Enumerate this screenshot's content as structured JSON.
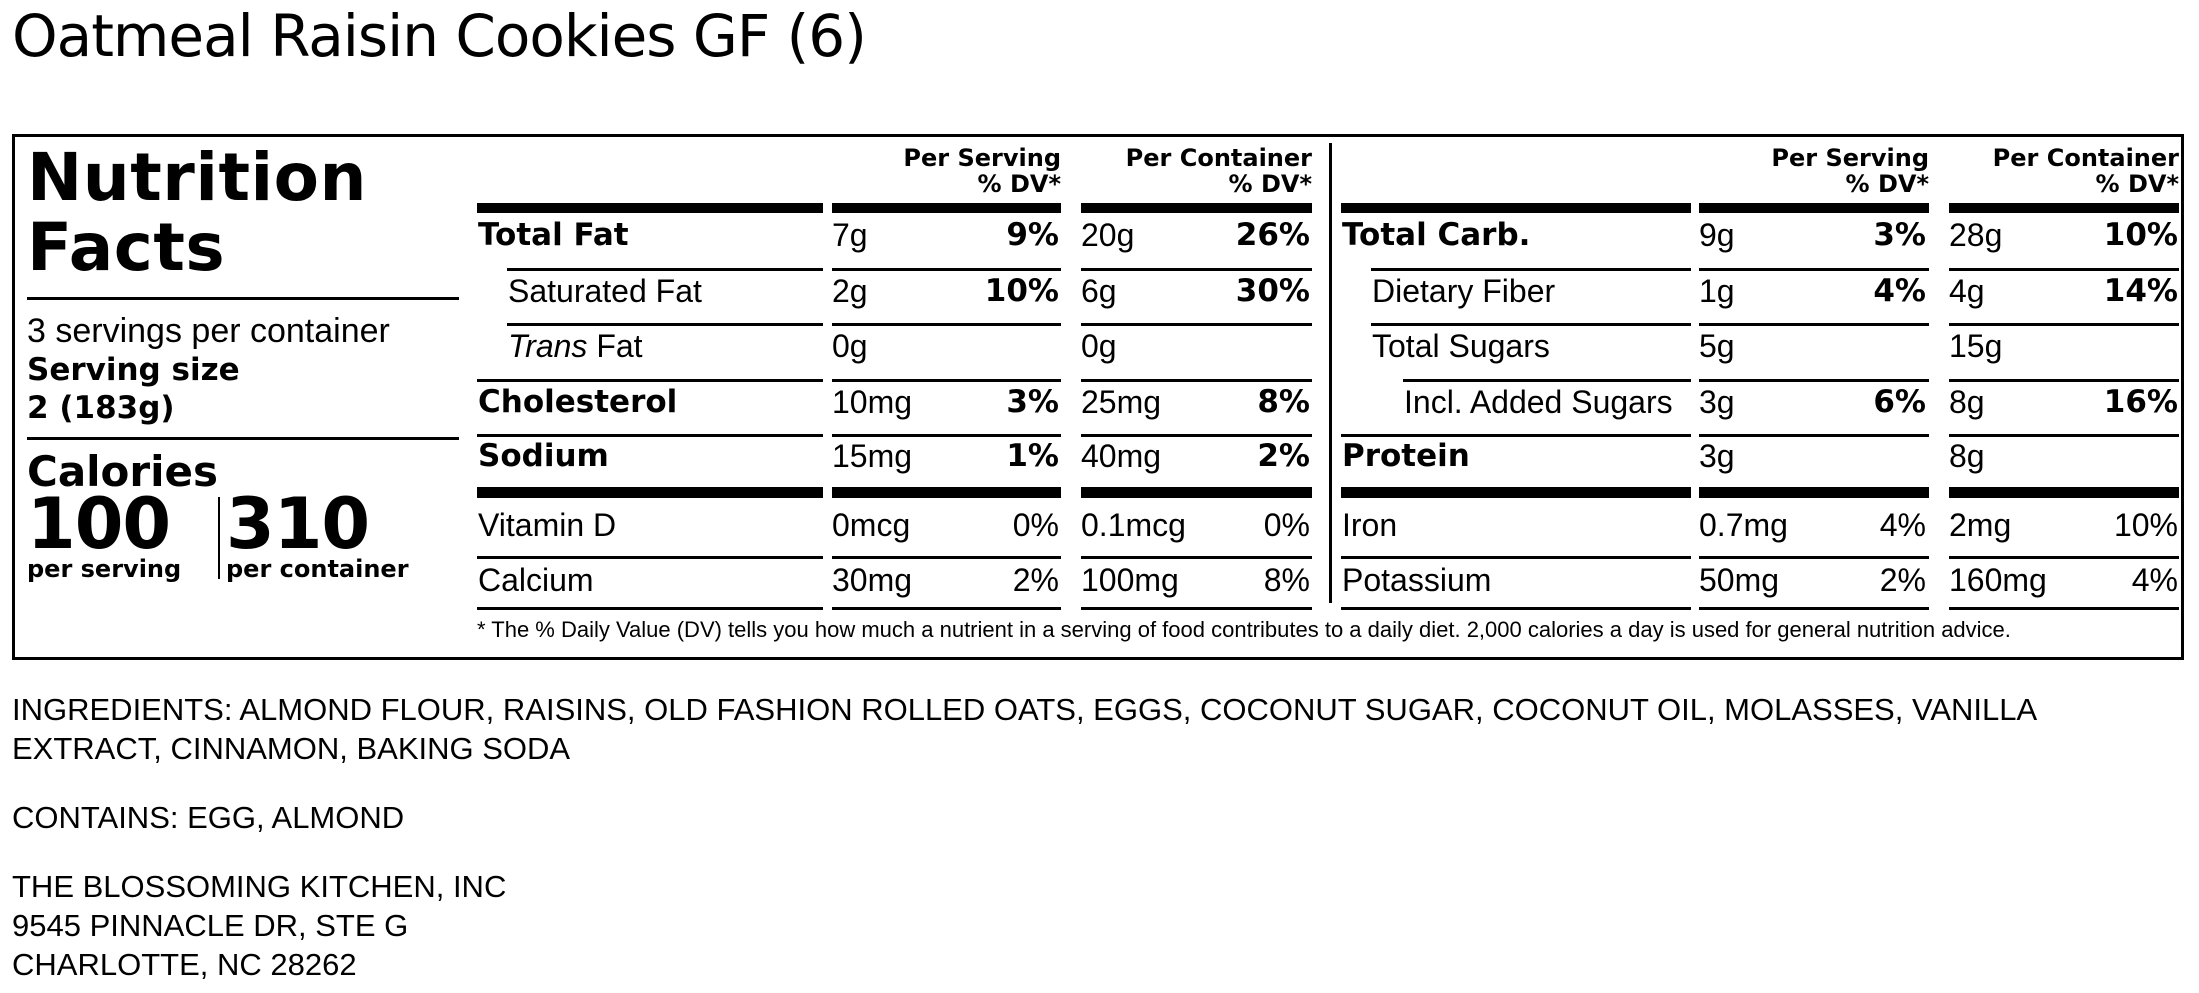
{
  "product_title": "Oatmeal Raisin Cookies GF (6)",
  "panel": {
    "heading_line1": "Nutrition",
    "heading_line2": "Facts",
    "servings_per_container": "3 servings per container",
    "serving_size_label": "Serving size",
    "serving_size_value": "2 (183g)",
    "calories_label": "Calories",
    "calories_per_serving": "100",
    "calories_per_container": "310",
    "per_serving_label": "per serving",
    "per_container_label": "per container"
  },
  "column_headers": {
    "per_serving_line1": "Per Serving",
    "per_serving_line2": "% DV*",
    "per_container_line1": "Per Container",
    "per_container_line2": "% DV*"
  },
  "left_rows": [
    {
      "name": "Total Fat",
      "bold": true,
      "indent": 0,
      "italic_prefix": "",
      "serv_amt": "7g",
      "serv_dv": "9%",
      "cont_amt": "20g",
      "cont_dv": "26%"
    },
    {
      "name": "Saturated Fat",
      "bold": false,
      "indent": 1,
      "italic_prefix": "",
      "serv_amt": "2g",
      "serv_dv": "10%",
      "cont_amt": "6g",
      "cont_dv": "30%"
    },
    {
      "name": "Fat",
      "bold": false,
      "indent": 1,
      "italic_prefix": "Trans",
      "serv_amt": "0g",
      "serv_dv": "",
      "cont_amt": "0g",
      "cont_dv": ""
    },
    {
      "name": "Cholesterol",
      "bold": true,
      "indent": 0,
      "italic_prefix": "",
      "serv_amt": "10mg",
      "serv_dv": "3%",
      "cont_amt": "25mg",
      "cont_dv": "8%"
    },
    {
      "name": "Sodium",
      "bold": true,
      "indent": 0,
      "italic_prefix": "",
      "serv_amt": "15mg",
      "serv_dv": "1%",
      "cont_amt": "40mg",
      "cont_dv": "2%"
    }
  ],
  "right_rows": [
    {
      "name": "Total Carb.",
      "bold": true,
      "indent": 0,
      "serv_amt": "9g",
      "serv_dv": "3%",
      "cont_amt": "28g",
      "cont_dv": "10%"
    },
    {
      "name": "Dietary Fiber",
      "bold": false,
      "indent": 1,
      "serv_amt": "1g",
      "serv_dv": "4%",
      "cont_amt": "4g",
      "cont_dv": "14%"
    },
    {
      "name": "Total Sugars",
      "bold": false,
      "indent": 1,
      "serv_amt": "5g",
      "serv_dv": "",
      "cont_amt": "15g",
      "cont_dv": ""
    },
    {
      "name": "Incl. Added Sugars",
      "bold": false,
      "indent": 2,
      "serv_amt": "3g",
      "serv_dv": "6%",
      "cont_amt": "8g",
      "cont_dv": "16%"
    },
    {
      "name": "Protein",
      "bold": true,
      "indent": 0,
      "serv_amt": "3g",
      "serv_dv": "",
      "cont_amt": "8g",
      "cont_dv": ""
    }
  ],
  "vitamin_left": [
    {
      "name": "Vitamin D",
      "serv_amt": "0mcg",
      "serv_dv": "0%",
      "cont_amt": "0.1mcg",
      "cont_dv": "0%"
    },
    {
      "name": "Calcium",
      "serv_amt": "30mg",
      "serv_dv": "2%",
      "cont_amt": "100mg",
      "cont_dv": "8%"
    }
  ],
  "vitamin_right": [
    {
      "name": "Iron",
      "serv_amt": "0.7mg",
      "serv_dv": "4%",
      "cont_amt": "2mg",
      "cont_dv": "10%"
    },
    {
      "name": "Potassium",
      "serv_amt": "50mg",
      "serv_dv": "2%",
      "cont_amt": "160mg",
      "cont_dv": "4%"
    }
  ],
  "footnote": "* The % Daily Value (DV) tells you how much a nutrient in a serving of food contributes to a daily diet. 2,000 calories a day is used for general nutrition advice.",
  "ingredients_line1": "INGREDIENTS: ALMOND FLOUR, RAISINS, OLD FASHION ROLLED OATS, EGGS, COCONUT SUGAR, COCONUT OIL, MOLASSES, VANILLA",
  "ingredients_line2": "EXTRACT, CINNAMON, BAKING SODA",
  "contains": "CONTAINS: EGG, ALMOND",
  "manufacturer": {
    "name": "THE BLOSSOMING KITCHEN, INC",
    "address1": "9545 PINNACLE DR, STE G",
    "address2": "CHARLOTTE, NC 28262"
  }
}
